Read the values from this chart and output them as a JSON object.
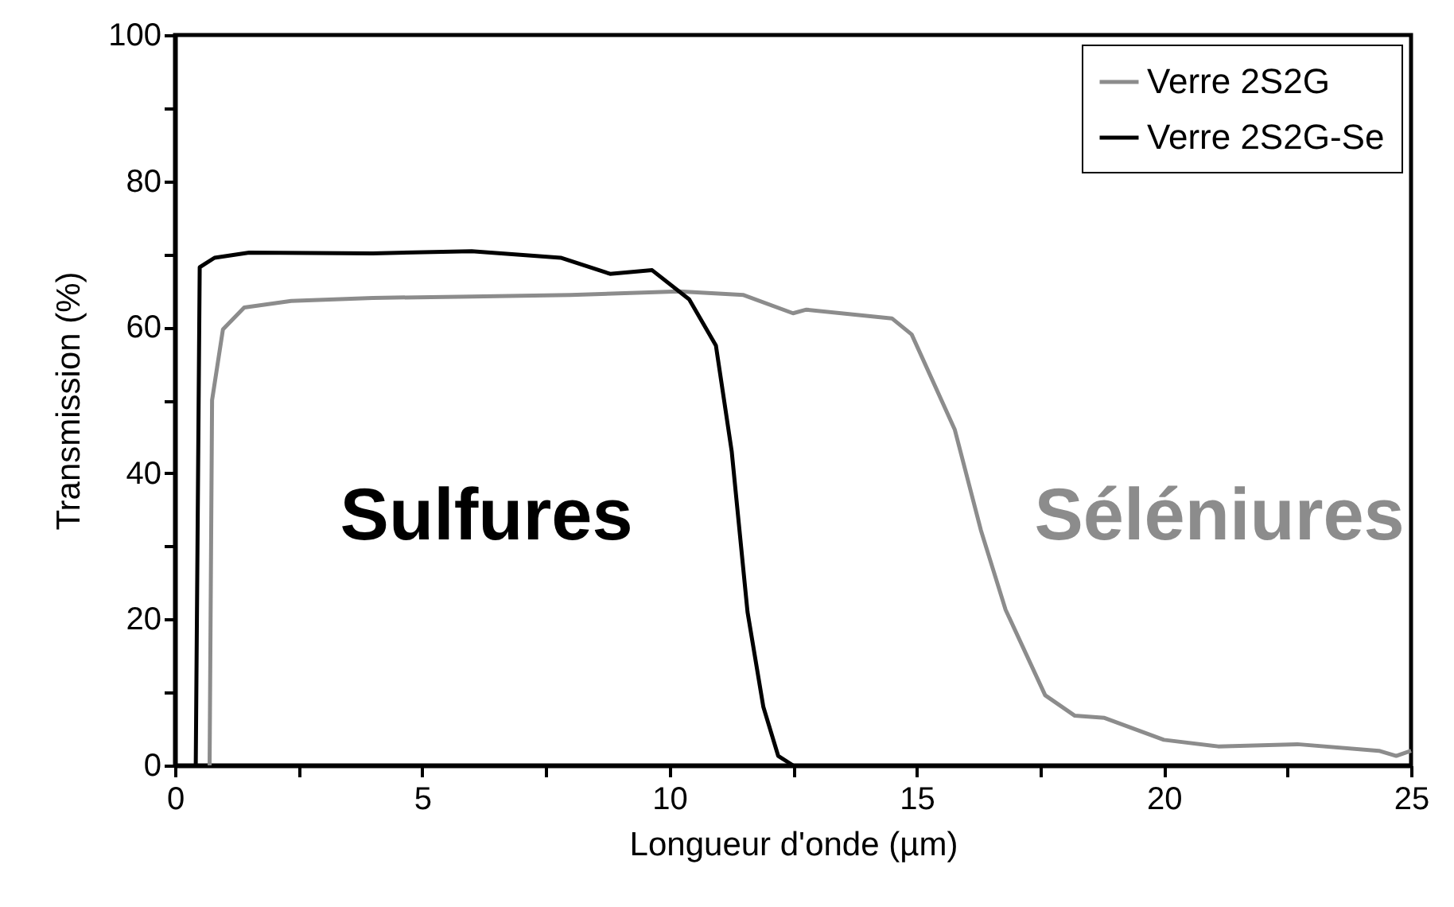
{
  "chart_data": {
    "type": "line",
    "xlabel": "Longueur d'onde (µm)",
    "ylabel": "Transmission (%)",
    "xlim": [
      0,
      25
    ],
    "ylim": [
      0,
      100
    ],
    "xticks": [
      0,
      {
        "value": 2.5,
        "label": null
      },
      5,
      {
        "value": 7.5,
        "label": null
      },
      10,
      {
        "value": 12.5,
        "label": null
      },
      15,
      {
        "value": 17.5,
        "label": null
      },
      20,
      {
        "value": 22.5,
        "label": null
      },
      25
    ],
    "yticks": [
      0,
      {
        "value": 10,
        "label": null
      },
      20,
      {
        "value": 30,
        "label": null
      },
      40,
      {
        "value": 50,
        "label": null
      },
      60,
      {
        "value": 70,
        "label": null
      },
      80,
      {
        "value": 90,
        "label": null
      },
      100
    ],
    "legend": "top right",
    "grid": false,
    "series": [
      {
        "name": "Verre 2S2G",
        "color": "#8c8c8c",
        "x": [
          0.7,
          0.75,
          0.97,
          1.4,
          2.35,
          4,
          6,
          8,
          10.2,
          11.5,
          12.5,
          12.77,
          14.5,
          14.9,
          15.77,
          16.3,
          16.8,
          17.6,
          18.2,
          18.8,
          20.0,
          21.1,
          22.7,
          24.35,
          24.7,
          25
        ],
        "values": [
          0,
          50,
          59.7,
          62.7,
          63.6,
          64,
          64.2,
          64.4,
          64.9,
          64.4,
          61.9,
          62.4,
          61.2,
          59,
          46,
          32.2,
          21.3,
          9.6,
          6.8,
          6.5,
          3.5,
          2.6,
          2.9,
          2.0,
          1.3,
          2
        ]
      },
      {
        "name": "Verre 2S2G-Se",
        "color": "#000000",
        "x": [
          0.42,
          0.5,
          0.8,
          1.5,
          4,
          6,
          7.8,
          8.8,
          9.65,
          10.4,
          10.94,
          11.26,
          11.58,
          11.9,
          12.2,
          12.5
        ],
        "values": [
          0,
          68.2,
          69.5,
          70.2,
          70.1,
          70.4,
          69.5,
          67.3,
          67.8,
          63.8,
          57.5,
          43,
          21,
          8,
          1.3,
          0
        ]
      }
    ],
    "annotations": [
      "Sulfures",
      "Séléniures"
    ]
  }
}
